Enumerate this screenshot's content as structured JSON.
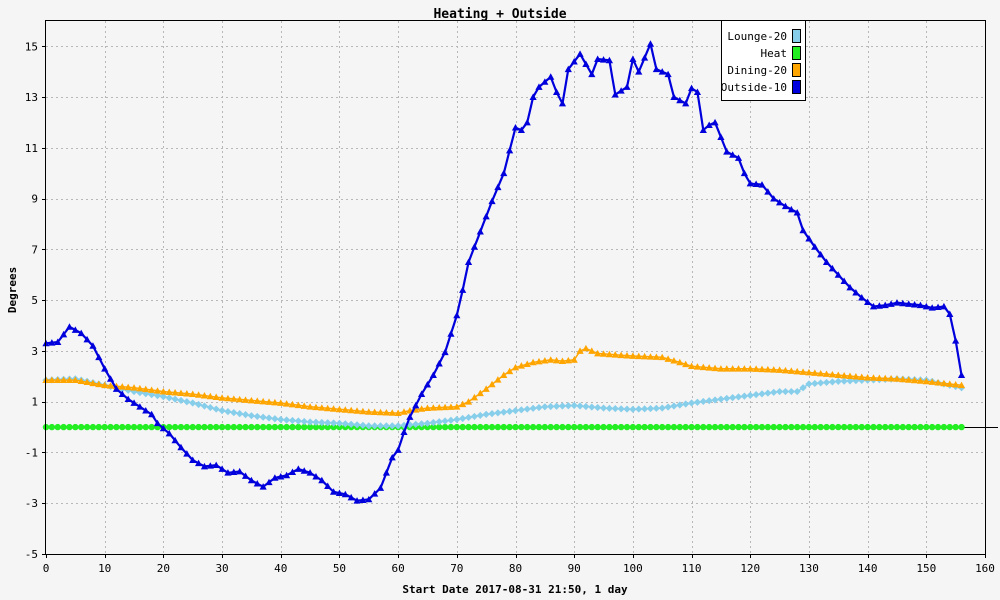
{
  "colors": {
    "background": "#f5f5f5",
    "lounge": "#87ceeb",
    "heat": "#22ee22",
    "dining": "#ffa500",
    "outside": "#0000dd"
  },
  "chart_data": {
    "type": "line",
    "title": "Heating + Outside",
    "xlabel": "Start Date 2017-08-31 21:50, 1 day",
    "ylabel": "Degrees",
    "xlim": [
      0,
      160
    ],
    "ylim": [
      -5,
      16
    ],
    "x_ticks": [
      0,
      10,
      20,
      30,
      40,
      50,
      60,
      70,
      80,
      90,
      100,
      110,
      120,
      130,
      140,
      150,
      160
    ],
    "y_ticks": [
      -5,
      -3,
      -1,
      1,
      3,
      5,
      7,
      9,
      11,
      13,
      15
    ],
    "grid": true,
    "legend_position": "top-right",
    "series": [
      {
        "name": "Lounge-20",
        "color": "#87ceeb",
        "marker": "diamond",
        "points": [
          [
            0,
            1.85
          ],
          [
            5,
            1.9
          ],
          [
            10,
            1.65
          ],
          [
            15,
            1.4
          ],
          [
            20,
            1.2
          ],
          [
            25,
            0.95
          ],
          [
            30,
            0.65
          ],
          [
            35,
            0.45
          ],
          [
            40,
            0.3
          ],
          [
            45,
            0.2
          ],
          [
            50,
            0.15
          ],
          [
            55,
            0.05
          ],
          [
            60,
            0.05
          ],
          [
            65,
            0.15
          ],
          [
            70,
            0.3
          ],
          [
            75,
            0.5
          ],
          [
            80,
            0.65
          ],
          [
            85,
            0.8
          ],
          [
            90,
            0.85
          ],
          [
            95,
            0.75
          ],
          [
            100,
            0.7
          ],
          [
            105,
            0.75
          ],
          [
            110,
            0.95
          ],
          [
            115,
            1.1
          ],
          [
            120,
            1.25
          ],
          [
            125,
            1.4
          ],
          [
            128,
            1.4
          ],
          [
            130,
            1.7
          ],
          [
            135,
            1.8
          ],
          [
            140,
            1.85
          ],
          [
            145,
            1.9
          ],
          [
            150,
            1.85
          ],
          [
            156,
            1.55
          ]
        ]
      },
      {
        "name": "Heat",
        "color": "#22ee22",
        "marker": "circle",
        "points": [
          [
            0,
            0
          ],
          [
            156,
            0
          ]
        ]
      },
      {
        "name": "Dining-20",
        "color": "#ffa500",
        "marker": "triangle",
        "points": [
          [
            0,
            1.85
          ],
          [
            5,
            1.85
          ],
          [
            10,
            1.65
          ],
          [
            15,
            1.55
          ],
          [
            20,
            1.4
          ],
          [
            25,
            1.3
          ],
          [
            30,
            1.15
          ],
          [
            35,
            1.05
          ],
          [
            40,
            0.95
          ],
          [
            45,
            0.8
          ],
          [
            50,
            0.7
          ],
          [
            55,
            0.6
          ],
          [
            60,
            0.55
          ],
          [
            62,
            0.65
          ],
          [
            65,
            0.75
          ],
          [
            70,
            0.8
          ],
          [
            72,
            1.0
          ],
          [
            75,
            1.5
          ],
          [
            78,
            2.05
          ],
          [
            80,
            2.35
          ],
          [
            83,
            2.55
          ],
          [
            86,
            2.65
          ],
          [
            88,
            2.6
          ],
          [
            90,
            2.65
          ],
          [
            91,
            3.0
          ],
          [
            92,
            3.1
          ],
          [
            94,
            2.9
          ],
          [
            97,
            2.85
          ],
          [
            100,
            2.8
          ],
          [
            105,
            2.75
          ],
          [
            108,
            2.55
          ],
          [
            110,
            2.4
          ],
          [
            115,
            2.3
          ],
          [
            120,
            2.3
          ],
          [
            125,
            2.25
          ],
          [
            130,
            2.15
          ],
          [
            135,
            2.05
          ],
          [
            140,
            1.95
          ],
          [
            145,
            1.9
          ],
          [
            150,
            1.8
          ],
          [
            156,
            1.65
          ]
        ]
      },
      {
        "name": "Outside-10",
        "color": "#0000dd",
        "marker": "triangle",
        "points": [
          [
            0,
            3.3
          ],
          [
            2,
            3.35
          ],
          [
            4,
            3.95
          ],
          [
            6,
            3.7
          ],
          [
            8,
            3.2
          ],
          [
            10,
            2.3
          ],
          [
            12,
            1.5
          ],
          [
            14,
            1.1
          ],
          [
            16,
            0.8
          ],
          [
            18,
            0.5
          ],
          [
            19,
            0.15
          ],
          [
            21,
            -0.25
          ],
          [
            23,
            -0.8
          ],
          [
            25,
            -1.3
          ],
          [
            27,
            -1.55
          ],
          [
            29,
            -1.5
          ],
          [
            31,
            -1.8
          ],
          [
            33,
            -1.75
          ],
          [
            35,
            -2.1
          ],
          [
            37,
            -2.35
          ],
          [
            39,
            -2.0
          ],
          [
            41,
            -1.9
          ],
          [
            43,
            -1.65
          ],
          [
            45,
            -1.8
          ],
          [
            47,
            -2.1
          ],
          [
            49,
            -2.55
          ],
          [
            51,
            -2.65
          ],
          [
            53,
            -2.9
          ],
          [
            55,
            -2.85
          ],
          [
            57,
            -2.4
          ],
          [
            59,
            -1.2
          ],
          [
            60,
            -0.9
          ],
          [
            61,
            -0.2
          ],
          [
            62,
            0.4
          ],
          [
            64,
            1.3
          ],
          [
            66,
            2.05
          ],
          [
            68,
            2.95
          ],
          [
            70,
            4.4
          ],
          [
            71,
            5.4
          ],
          [
            72,
            6.5
          ],
          [
            74,
            7.7
          ],
          [
            76,
            8.9
          ],
          [
            78,
            10.0
          ],
          [
            80,
            11.8
          ],
          [
            81,
            11.7
          ],
          [
            82,
            12.0
          ],
          [
            83,
            13.0
          ],
          [
            84,
            13.4
          ],
          [
            86,
            13.8
          ],
          [
            87,
            13.2
          ],
          [
            88,
            12.75
          ],
          [
            89,
            14.1
          ],
          [
            91,
            14.7
          ],
          [
            93,
            13.9
          ],
          [
            94,
            14.5
          ],
          [
            96,
            14.45
          ],
          [
            97,
            13.1
          ],
          [
            99,
            13.4
          ],
          [
            100,
            14.5
          ],
          [
            101,
            14.0
          ],
          [
            103,
            15.1
          ],
          [
            104,
            14.1
          ],
          [
            106,
            13.9
          ],
          [
            107,
            13.0
          ],
          [
            109,
            12.75
          ],
          [
            110,
            13.35
          ],
          [
            111,
            13.2
          ],
          [
            112,
            11.7
          ],
          [
            113,
            11.9
          ],
          [
            114,
            12.0
          ],
          [
            116,
            10.85
          ],
          [
            118,
            10.6
          ],
          [
            119,
            10.0
          ],
          [
            120,
            9.6
          ],
          [
            122,
            9.55
          ],
          [
            124,
            9.0
          ],
          [
            126,
            8.7
          ],
          [
            128,
            8.45
          ],
          [
            129,
            7.75
          ],
          [
            131,
            7.1
          ],
          [
            133,
            6.5
          ],
          [
            135,
            6.0
          ],
          [
            137,
            5.5
          ],
          [
            139,
            5.1
          ],
          [
            141,
            4.75
          ],
          [
            143,
            4.8
          ],
          [
            145,
            4.9
          ],
          [
            147,
            4.85
          ],
          [
            149,
            4.8
          ],
          [
            151,
            4.7
          ],
          [
            153,
            4.75
          ],
          [
            154,
            4.45
          ],
          [
            155,
            3.4
          ],
          [
            156,
            2.05
          ]
        ]
      }
    ]
  }
}
